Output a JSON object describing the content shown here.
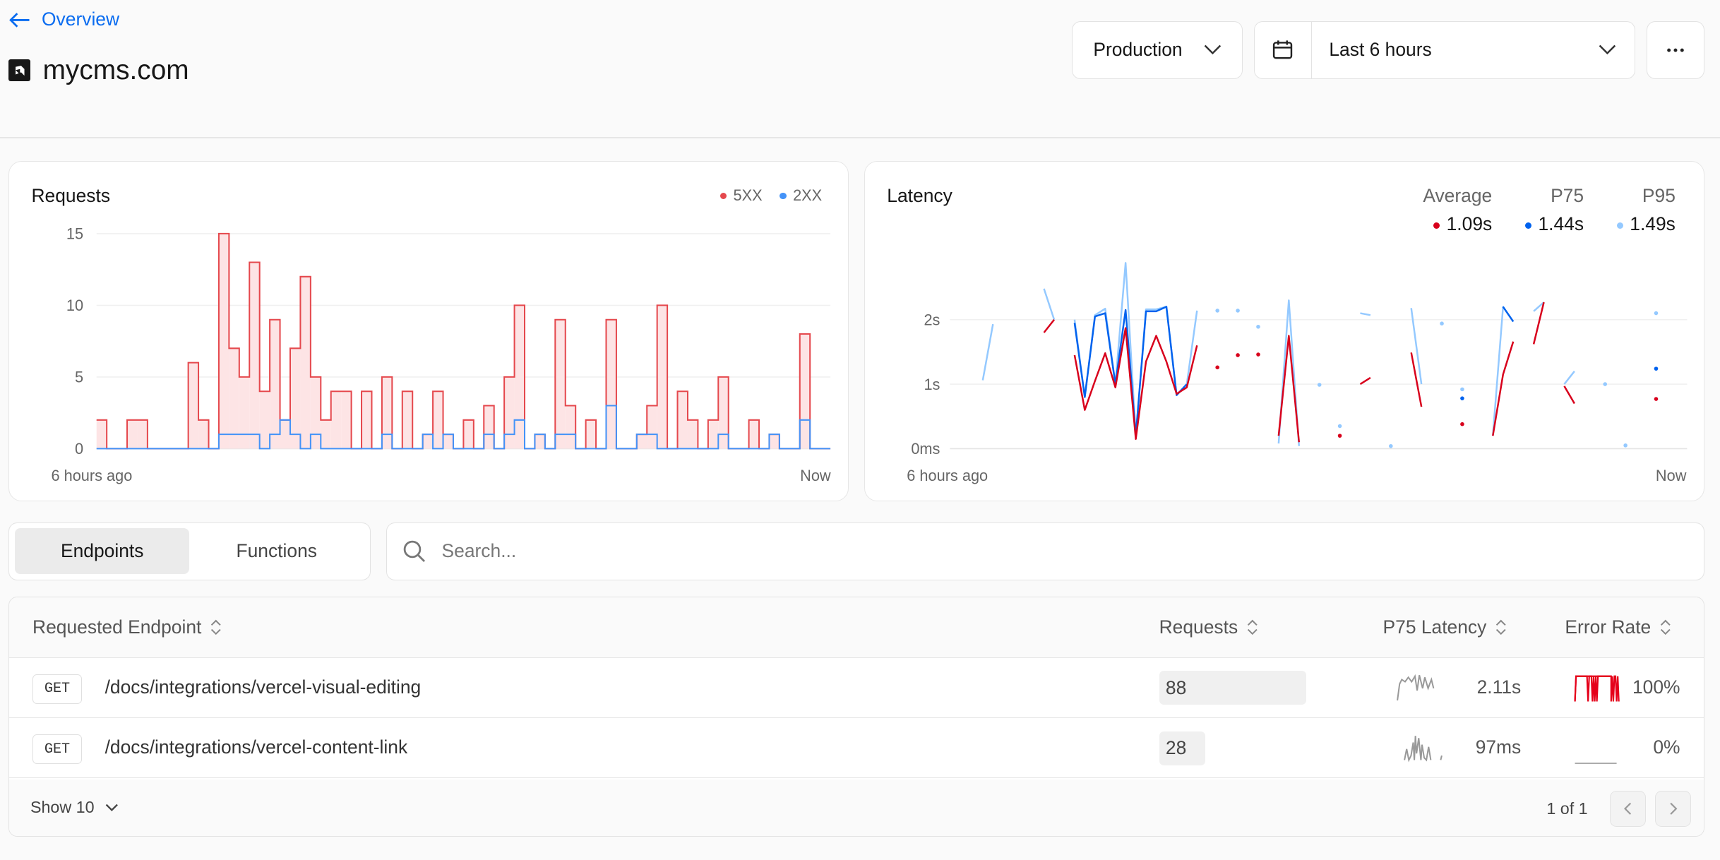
{
  "header": {
    "back_label": "Overview",
    "project_name": "mycms.com"
  },
  "toolbar": {
    "environment": "Production",
    "time_range": "Last 6 hours",
    "more_icon": "ellipsis-icon"
  },
  "requests_card": {
    "title": "Requests",
    "legend": [
      {
        "label": "5XX",
        "color": "#e5484d"
      },
      {
        "label": "2XX",
        "color": "#4493f8"
      }
    ],
    "x_start": "6 hours ago",
    "x_end": "Now"
  },
  "latency_card": {
    "title": "Latency",
    "stats": [
      {
        "label": "Average",
        "value": "1.09s",
        "color": "#d8001c"
      },
      {
        "label": "P75",
        "value": "1.44s",
        "color": "#0062ee"
      },
      {
        "label": "P95",
        "value": "1.49s",
        "color": "#94c9ff"
      }
    ],
    "x_start": "6 hours ago",
    "x_end": "Now"
  },
  "chart_data": [
    {
      "type": "area",
      "title": "Requests",
      "step": true,
      "ylim": [
        0,
        15
      ],
      "yticks": [
        "0",
        "5",
        "10",
        "15"
      ],
      "ytick_values": [
        0,
        5,
        10,
        15
      ],
      "xlabels": [
        "6 hours ago",
        "Now"
      ],
      "grid": true,
      "legend": "top-right",
      "series": [
        {
          "name": "5XX",
          "color": "#e5484d",
          "fill": "#fde4e5",
          "values": [
            2,
            0,
            0,
            2,
            2,
            0,
            0,
            0,
            0,
            6,
            2,
            0,
            15,
            7,
            5,
            13,
            4,
            9,
            2,
            7,
            12,
            5,
            2,
            4,
            4,
            0,
            4,
            0,
            5,
            0,
            4,
            0,
            1,
            4,
            1,
            0,
            2,
            0,
            3,
            0,
            5,
            10,
            0,
            1,
            0,
            9,
            3,
            0,
            2,
            0,
            9,
            0,
            0,
            1,
            3,
            10,
            0,
            4,
            2,
            0,
            2,
            5,
            0,
            0,
            2,
            0,
            1,
            0,
            0,
            8,
            0,
            0
          ]
        },
        {
          "name": "2XX",
          "color": "#4493f8",
          "fill": "#e0edfd",
          "values": [
            0,
            0,
            0,
            0,
            0,
            0,
            0,
            0,
            0,
            0,
            0,
            0,
            1,
            1,
            1,
            1,
            0,
            1,
            2,
            1,
            0,
            1,
            0,
            0,
            0,
            0,
            0,
            0,
            1,
            0,
            0,
            0,
            1,
            0,
            1,
            0,
            0,
            0,
            1,
            0,
            1,
            2,
            0,
            1,
            0,
            1,
            1,
            0,
            0,
            0,
            3,
            0,
            0,
            1,
            1,
            0,
            0,
            0,
            0,
            0,
            0,
            1,
            0,
            0,
            0,
            0,
            1,
            0,
            0,
            2,
            0,
            0
          ]
        }
      ]
    },
    {
      "type": "line",
      "title": "Latency",
      "ylim": [
        0,
        2.9
      ],
      "yticks": [
        "0ms",
        "1s",
        "2s"
      ],
      "ytick_values": [
        0,
        1,
        2
      ],
      "xlabels": [
        "6 hours ago",
        "Now"
      ],
      "grid": true,
      "legend": "top-right",
      "series": [
        {
          "name": "P95",
          "color": "#94c9ff",
          "values": [
            null,
            null,
            null,
            1.06,
            1.93,
            null,
            null,
            null,
            null,
            2.48,
            2.0,
            null,
            2.0,
            0.8,
            2.07,
            2.17,
            1.0,
            2.88,
            0.2,
            2.16,
            2.16,
            2.2,
            0.83,
            1.0,
            2.14,
            null,
            2.14,
            null,
            2.14,
            null,
            1.89,
            null,
            0.08,
            2.3,
            0.04,
            null,
            0.99,
            null,
            0.35,
            null,
            2.1,
            2.07,
            null,
            0.04,
            null,
            2.18,
            1.0,
            null,
            1.94,
            null,
            0.92,
            null,
            null,
            0.2,
            2.2,
            1.97,
            null,
            2.13,
            2.27,
            null,
            1.0,
            1.2,
            null,
            null,
            1.0,
            null,
            0.05,
            null,
            null,
            2.1,
            null,
            null
          ]
        },
        {
          "name": "P75",
          "color": "#0062ee",
          "values": [
            null,
            null,
            null,
            null,
            null,
            null,
            null,
            null,
            null,
            null,
            null,
            null,
            1.95,
            0.8,
            2.05,
            2.1,
            1.0,
            2.15,
            0.2,
            2.13,
            2.13,
            2.2,
            0.83,
            1.0,
            null,
            null,
            null,
            null,
            null,
            null,
            null,
            null,
            null,
            null,
            null,
            null,
            null,
            null,
            null,
            null,
            null,
            null,
            null,
            null,
            null,
            null,
            null,
            null,
            null,
            null,
            0.78,
            null,
            null,
            null,
            2.2,
            1.97,
            null,
            null,
            null,
            null,
            null,
            null,
            null,
            null,
            null,
            null,
            null,
            null,
            null,
            1.24,
            null,
            null
          ]
        },
        {
          "name": "Average",
          "color": "#d8001c",
          "values": [
            null,
            null,
            null,
            null,
            null,
            null,
            null,
            null,
            null,
            1.8,
            2.0,
            null,
            1.45,
            0.6,
            1.05,
            1.48,
            0.95,
            1.87,
            0.15,
            1.35,
            1.75,
            1.35,
            0.85,
            0.95,
            1.6,
            null,
            1.26,
            null,
            1.45,
            null,
            1.46,
            null,
            0.2,
            1.75,
            0.1,
            null,
            null,
            null,
            0.2,
            null,
            1.0,
            1.1,
            null,
            null,
            null,
            1.49,
            0.65,
            null,
            null,
            null,
            0.38,
            null,
            null,
            0.2,
            1.15,
            1.66,
            null,
            1.62,
            2.27,
            null,
            0.97,
            0.7,
            null,
            null,
            null,
            null,
            null,
            null,
            null,
            0.77,
            null,
            null
          ]
        }
      ]
    }
  ],
  "tabs": [
    {
      "label": "Endpoints",
      "active": true
    },
    {
      "label": "Functions",
      "active": false
    }
  ],
  "search": {
    "placeholder": "Search...",
    "value": ""
  },
  "table": {
    "columns": [
      "Requested Endpoint",
      "Requests",
      "P75 Latency",
      "Error Rate"
    ],
    "rows": [
      {
        "method": "GET",
        "endpoint": "/docs/integrations/vercel-visual-editing",
        "requests": "88",
        "p75_latency": "2.11s",
        "error_rate": "100%"
      },
      {
        "method": "GET",
        "endpoint": "/docs/integrations/vercel-content-link",
        "requests": "28",
        "p75_latency": "97ms",
        "error_rate": "0%"
      }
    ],
    "page_size_label": "Show 10",
    "pagination": "1 of 1"
  }
}
